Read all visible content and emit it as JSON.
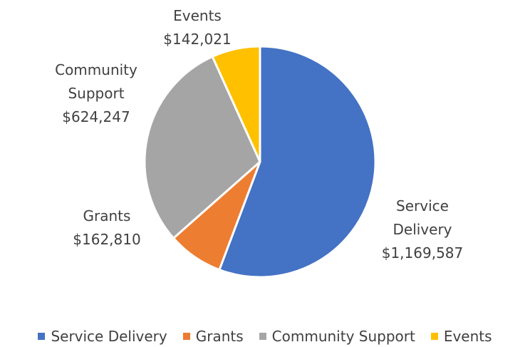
{
  "chart_data": {
    "type": "pie",
    "categories": [
      "Service Delivery",
      "Grants",
      "Community Support",
      "Events"
    ],
    "values": [
      1169587,
      162810,
      624247,
      142021
    ],
    "value_labels": [
      "$1,169,587",
      "$162,810",
      "$624,247",
      "$142,021"
    ],
    "colors": [
      "#4472c4",
      "#ed7d31",
      "#a5a5a5",
      "#ffc000"
    ],
    "legend": "bottom"
  }
}
